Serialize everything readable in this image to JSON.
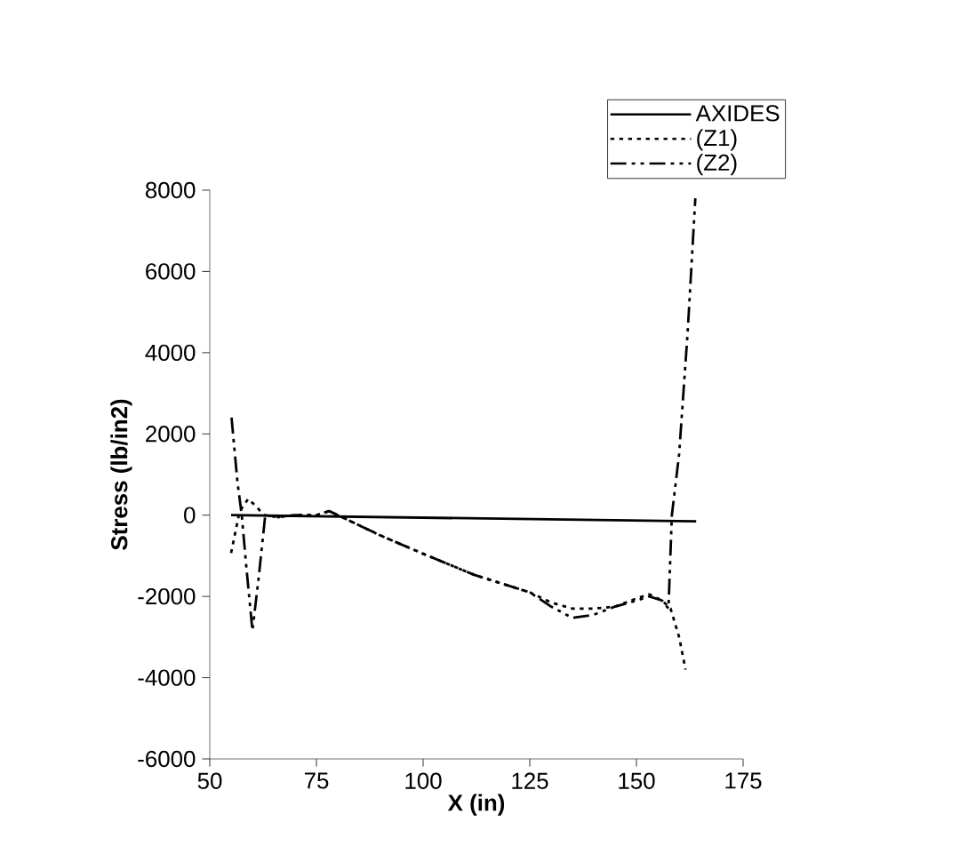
{
  "chart_data": {
    "type": "line",
    "xlabel": "X (in)",
    "ylabel": "Stress (lb/in2)",
    "xlim": [
      50,
      175
    ],
    "xticks": [
      50,
      75,
      100,
      125,
      150,
      175
    ],
    "ylim": [
      -6000,
      8000
    ],
    "yticks": [
      -6000,
      -4000,
      -2000,
      0,
      2000,
      4000,
      6000,
      8000
    ],
    "grid": false,
    "legend": "top right",
    "marker": "none",
    "series": [
      {
        "name": "AXIDES",
        "color": "#000000",
        "line_style": "solid",
        "x": [
          55,
          164
        ],
        "values": [
          0,
          -150
        ]
      },
      {
        "name": "(Z1)",
        "color": "#000000",
        "line_style": "dotted",
        "x": [
          55,
          57,
          59,
          61,
          62.7,
          66,
          70,
          75,
          78,
          80,
          90,
          100,
          112,
          125,
          130,
          135,
          140,
          145,
          150,
          153,
          156,
          158,
          160,
          161.5
        ],
        "values": [
          -930,
          100,
          400,
          200,
          0,
          -50,
          0,
          0,
          100,
          0,
          -500,
          -950,
          -1470,
          -1900,
          -2150,
          -2300,
          -2300,
          -2250,
          -2050,
          -1950,
          -2100,
          -2300,
          -3000,
          -3800
        ]
      },
      {
        "name": "(Z2)",
        "color": "#000000",
        "line_style": "dashdot",
        "x": [
          55.1,
          56.5,
          57.5,
          58.5,
          60,
          61.5,
          63,
          66,
          70,
          75,
          78,
          80,
          90,
          100,
          112,
          125,
          130,
          135,
          140,
          145,
          150,
          153,
          156,
          157.5,
          158.3,
          160,
          162,
          163.8
        ],
        "values": [
          2400,
          800,
          0,
          -1200,
          -2840,
          -1500,
          0,
          -50,
          0,
          0,
          100,
          0,
          -500,
          -950,
          -1470,
          -1900,
          -2250,
          -2530,
          -2450,
          -2250,
          -2100,
          -2000,
          -2100,
          -2300,
          0,
          1500,
          4500,
          7800
        ]
      }
    ]
  }
}
